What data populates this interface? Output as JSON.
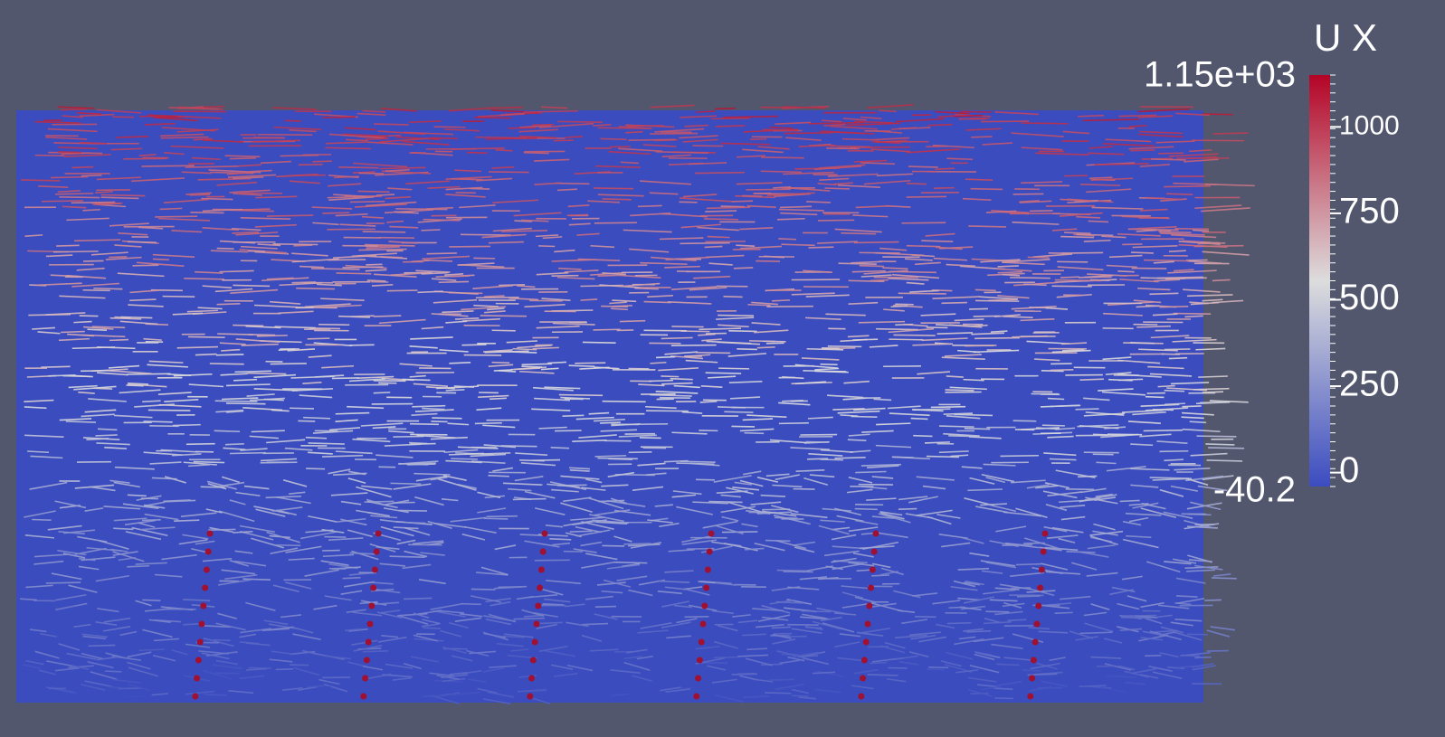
{
  "colorbar": {
    "title": "U X",
    "max": {
      "value": 1150,
      "label": "1.15e+03"
    },
    "min": -40.2,
    "ticks": [
      0,
      250,
      500,
      750,
      1000
    ]
  }
}
